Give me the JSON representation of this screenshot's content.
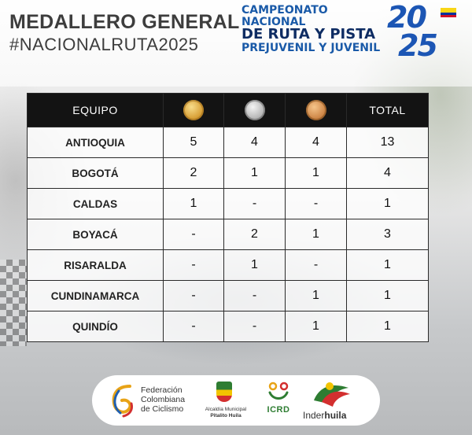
{
  "header": {
    "title": "MEDALLERO GENERAL",
    "hashtag": "#NACIONALRUTA2025",
    "event_line1": "CAMPEONATO NACIONAL",
    "event_line2": "DE RUTA Y PISTA",
    "event_line3": "PREJUVENIL Y JUVENIL",
    "year_top": "20",
    "year_bottom": "25",
    "flag_colors": [
      "#f9d616",
      "#0033a0",
      "#ce1126"
    ]
  },
  "table": {
    "columns": {
      "team": "EQUIPO",
      "gold_icon": "gold-medal",
      "silver_icon": "silver-medal",
      "bronze_icon": "bronze-medal",
      "total": "TOTAL"
    },
    "rows": [
      {
        "team": "ANTIOQUIA",
        "gold": "5",
        "silver": "4",
        "bronze": "4",
        "total": "13"
      },
      {
        "team": "BOGOTÁ",
        "gold": "2",
        "silver": "1",
        "bronze": "1",
        "total": "4"
      },
      {
        "team": "CALDAS",
        "gold": "1",
        "silver": "-",
        "bronze": "-",
        "total": "1"
      },
      {
        "team": "BOYACÁ",
        "gold": "-",
        "silver": "2",
        "bronze": "1",
        "total": "3"
      },
      {
        "team": "RISARALDA",
        "gold": "-",
        "silver": "1",
        "bronze": "-",
        "total": "1"
      },
      {
        "team": "CUNDINAMARCA",
        "gold": "-",
        "silver": "-",
        "bronze": "1",
        "total": "1"
      },
      {
        "team": "QUINDÍO",
        "gold": "-",
        "silver": "-",
        "bronze": "1",
        "total": "1"
      }
    ]
  },
  "sponsors": {
    "fcc_line1": "Federación",
    "fcc_line2": "Colombiana",
    "fcc_line3": "de Ciclismo",
    "pitalito_line1": "Alcaldía Municipal",
    "pitalito_line2": "Pitalito Huila",
    "icrd": "ICRD",
    "inder_a": "Inder",
    "inder_b": "huila"
  }
}
